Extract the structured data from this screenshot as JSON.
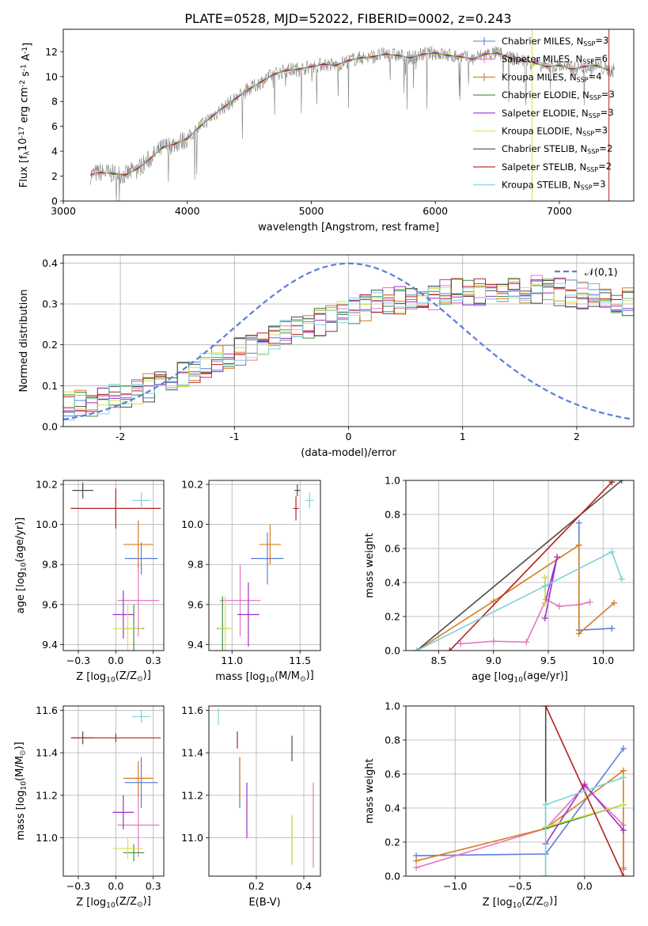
{
  "figure_title": "PLATE=0528, MJD=52022, FIBERID=0002, z=0.243",
  "colors": {
    "chabrier_miles": "#5b7fd6",
    "salpeter_miles": "#e377c2",
    "kroupa_miles": "#d97b1f",
    "chabrier_elodie": "#3f8f3f",
    "salpeter_elodie": "#9b30c8",
    "kroupa_elodie": "#d9e04a",
    "chabrier_stelib": "#4d4d4d",
    "salpeter_stelib": "#b22222",
    "kroupa_stelib": "#7dd3d8",
    "data": "#808080",
    "gauss": "#5b7fd6",
    "grid": "#b0b0b0"
  },
  "chart_data": [
    {
      "type": "line",
      "id": "spectrum",
      "xlabel": "wavelength [Angstrom, rest frame]",
      "ylabel": "Flux [f$_\\lambda$10$^{-17}$ erg cm$^{-2}$ s$^{-1}$ A$^{-1}$]",
      "xlim": [
        3000,
        7600
      ],
      "ylim": [
        0,
        13.8
      ],
      "xticks": [
        3000,
        4000,
        5000,
        6000,
        7000
      ],
      "yticks": [
        0,
        2,
        4,
        6,
        8,
        10,
        12
      ],
      "legend": [
        "Chabrier MILES, N$_{SSP}$=3",
        "Salpeter MILES, N$_{SSP}$=6",
        "Kroupa MILES, N$_{SSP}$=4",
        "Chabrier ELODIE, N$_{SSP}$=3",
        "Salpeter ELODIE, N$_{SSP}$=3",
        "Kroupa ELODIE, N$_{SSP}$=3",
        "Chabrier STELIB, N$_{SSP}$=2",
        "Salpeter STELIB, N$_{SSP}$=2",
        "Kroupa STELIB, N$_{SSP}$=3"
      ],
      "legend_placement": "right",
      "model_x": [
        3220,
        3300,
        3400,
        3500,
        3600,
        3700,
        3800,
        3900,
        4000,
        4100,
        4200,
        4300,
        4400,
        4500,
        4600,
        4700,
        4800,
        4900,
        5000,
        5100,
        5200,
        5300,
        5400,
        5500,
        5600,
        5700,
        5800,
        5900,
        6000,
        6100,
        6200,
        6300,
        6400,
        6500,
        6600,
        6700,
        6800,
        6900,
        7000,
        7100,
        7200,
        7300,
        7400
      ],
      "model_y": [
        2.1,
        2.3,
        2.2,
        2.1,
        2.6,
        3.4,
        4.3,
        4.6,
        5.0,
        6.0,
        6.8,
        7.6,
        8.3,
        9.0,
        9.6,
        10.2,
        10.5,
        10.6,
        10.8,
        11.0,
        10.9,
        11.3,
        11.5,
        11.6,
        11.8,
        11.7,
        11.5,
        11.8,
        11.9,
        11.7,
        11.6,
        11.4,
        11.8,
        11.9,
        11.5,
        11.3,
        11.1,
        10.8,
        10.9,
        10.6,
        10.8,
        10.9,
        10.5
      ]
    },
    {
      "type": "histogram",
      "id": "residuals",
      "xlabel": "(data-model)/error",
      "ylabel": "Normed distribution",
      "xlim": [
        -2.5,
        2.5
      ],
      "ylim": [
        0,
        0.42
      ],
      "xticks": [
        -2,
        -1,
        0,
        1,
        2
      ],
      "yticks": [
        0.0,
        0.1,
        0.2,
        0.3,
        0.4
      ],
      "legend": [
        "$\\mathcal{N}(0,1)$"
      ],
      "legend_placement": "upper right",
      "bin_width": 0.1,
      "hist_x_start": -2.5,
      "hist_envelope": [
        0.05,
        0.055,
        0.06,
        0.065,
        0.07,
        0.075,
        0.085,
        0.095,
        0.11,
        0.12,
        0.13,
        0.14,
        0.155,
        0.165,
        0.175,
        0.185,
        0.195,
        0.205,
        0.215,
        0.225,
        0.235,
        0.245,
        0.255,
        0.265,
        0.275,
        0.285,
        0.29,
        0.3,
        0.305,
        0.31,
        0.315,
        0.32,
        0.32,
        0.325,
        0.33,
        0.33,
        0.33,
        0.335,
        0.335,
        0.335,
        0.335,
        0.335,
        0.33,
        0.33,
        0.325,
        0.32,
        0.32,
        0.315,
        0.31,
        0.305,
        0.3,
        0.29,
        0.285,
        0.275,
        0.265,
        0.255,
        0.245,
        0.235,
        0.225,
        0.215,
        0.205,
        0.195,
        0.185,
        0.175,
        0.165,
        0.155,
        0.14,
        0.13,
        0.12,
        0.11,
        0.1,
        0.09,
        0.085,
        0.08,
        0.07,
        0.065,
        0.06,
        0.055,
        0.05,
        0.05
      ]
    },
    {
      "type": "errorbar",
      "id": "age-vs-Z",
      "xlabel": "Z [log$_{10}$($Z/Z_\\odot$)]",
      "ylabel": "age  [log$_{10}$($age/yr$)]",
      "xlim": [
        -0.35,
        0.32
      ],
      "ylim": [
        9.37,
        10.22
      ],
      "xticks": [
        -0.25,
        0.0,
        0.25
      ],
      "yticks": [
        9.4,
        9.6,
        9.8,
        10.0,
        10.2
      ],
      "points": [
        {
          "model": "chabrier_miles",
          "x": 0.17,
          "y": 9.83,
          "xerr": 0.11,
          "yerr": 0.08
        },
        {
          "model": "salpeter_miles",
          "x": 0.15,
          "y": 9.62,
          "xerr": 0.14,
          "yerr": 0.18
        },
        {
          "model": "kroupa_miles",
          "x": 0.15,
          "y": 9.9,
          "xerr": 0.1,
          "yerr": 0.12
        },
        {
          "model": "chabrier_elodie",
          "x": 0.12,
          "y": 9.48,
          "xerr": 0.07,
          "yerr": 0.12
        },
        {
          "model": "salpeter_elodie",
          "x": 0.05,
          "y": 9.55,
          "xerr": 0.07,
          "yerr": 0.12
        },
        {
          "model": "kroupa_elodie",
          "x": 0.08,
          "y": 9.48,
          "xerr": 0.1,
          "yerr": 0.12
        },
        {
          "model": "chabrier_stelib",
          "x": -0.22,
          "y": 10.17,
          "xerr": 0.07,
          "yerr": 0.04
        },
        {
          "model": "salpeter_stelib",
          "x": 0.0,
          "y": 10.08,
          "xerr": 0.3,
          "yerr": 0.1
        },
        {
          "model": "kroupa_stelib",
          "x": 0.17,
          "y": 10.12,
          "xerr": 0.06,
          "yerr": 0.04
        }
      ]
    },
    {
      "type": "errorbar",
      "id": "age-vs-mass",
      "xlabel": "mass [log$_{10}$($M/M_\\odot$)]",
      "ylabel": "",
      "xlim": [
        10.83,
        11.65
      ],
      "ylim": [
        9.37,
        10.22
      ],
      "xticks": [
        11.0,
        11.5
      ],
      "yticks": [
        9.4,
        9.6,
        9.8,
        10.0,
        10.2
      ],
      "points": [
        {
          "model": "chabrier_miles",
          "x": 11.26,
          "y": 9.83,
          "xerr": 0.12,
          "yerr": 0.13
        },
        {
          "model": "salpeter_miles",
          "x": 11.06,
          "y": 9.62,
          "xerr": 0.15,
          "yerr": 0.18
        },
        {
          "model": "kroupa_miles",
          "x": 11.28,
          "y": 9.9,
          "xerr": 0.08,
          "yerr": 0.1
        },
        {
          "model": "chabrier_elodie",
          "x": 10.93,
          "y": 9.48,
          "xerr": 0.04,
          "yerr": 0.16
        },
        {
          "model": "salpeter_elodie",
          "x": 11.12,
          "y": 9.55,
          "xerr": 0.08,
          "yerr": 0.16
        },
        {
          "model": "kroupa_elodie",
          "x": 10.95,
          "y": 9.48,
          "xerr": 0.05,
          "yerr": 0.16
        },
        {
          "model": "chabrier_stelib",
          "x": 11.48,
          "y": 10.17,
          "xerr": 0.02,
          "yerr": 0.03
        },
        {
          "model": "salpeter_stelib",
          "x": 11.47,
          "y": 10.08,
          "xerr": 0.02,
          "yerr": 0.06
        },
        {
          "model": "kroupa_stelib",
          "x": 11.57,
          "y": 10.12,
          "xerr": 0.03,
          "yerr": 0.04
        }
      ]
    },
    {
      "type": "line",
      "id": "massweight-vs-age",
      "xlabel": "age  [log$_{10}$($age/yr$)]",
      "ylabel": "mass weight",
      "xlim": [
        8.2,
        10.28
      ],
      "ylim": [
        0.0,
        1.0
      ],
      "xticks": [
        8.5,
        9.0,
        9.5,
        10.0
      ],
      "yticks": [
        0.0,
        0.2,
        0.4,
        0.6,
        0.8,
        1.0
      ],
      "series": [
        {
          "model": "chabrier_miles",
          "x": [
            9.78,
            9.78,
            10.08
          ],
          "y": [
            0.75,
            0.12,
            0.13
          ]
        },
        {
          "model": "salpeter_miles",
          "x": [
            8.7,
            9.0,
            9.3,
            9.48,
            9.6,
            9.78,
            9.88
          ],
          "y": [
            0.04,
            0.055,
            0.05,
            0.3,
            0.26,
            0.27,
            0.285
          ]
        },
        {
          "model": "kroupa_miles",
          "x": [
            8.3,
            9.0,
            9.78,
            9.78,
            10.1
          ],
          "y": [
            0.0,
            0.29,
            0.62,
            0.1,
            0.28
          ]
        },
        {
          "model": "chabrier_elodie",
          "x": [
            9.47,
            9.47
          ],
          "y": [
            0.43,
            0.28
          ]
        },
        {
          "model": "salpeter_elodie",
          "x": [
            9.47,
            9.58,
            9.47
          ],
          "y": [
            0.19,
            0.55,
            0.28
          ]
        },
        {
          "model": "kroupa_elodie",
          "x": [
            9.47,
            9.47
          ],
          "y": [
            0.43,
            0.28
          ]
        },
        {
          "model": "chabrier_stelib",
          "x": [
            8.3,
            10.17
          ],
          "y": [
            0.0,
            1.0
          ]
        },
        {
          "model": "salpeter_stelib",
          "x": [
            8.6,
            10.08
          ],
          "y": [
            0.0,
            0.99
          ]
        },
        {
          "model": "kroupa_stelib",
          "x": [
            8.3,
            9.47,
            10.08,
            10.17
          ],
          "y": [
            0.0,
            0.38,
            0.58,
            0.42
          ]
        }
      ]
    },
    {
      "type": "errorbar",
      "id": "mass-vs-Z",
      "xlabel": "Z [log$_{10}$($Z/Z_\\odot$)]",
      "ylabel": "mass [log$_{10}$($M/M_\\odot$)]",
      "xlim": [
        -0.35,
        0.32
      ],
      "ylim": [
        10.82,
        11.62
      ],
      "xticks": [
        -0.25,
        0.0,
        0.25
      ],
      "yticks": [
        11.0,
        11.2,
        11.4,
        11.6
      ],
      "points": [
        {
          "model": "chabrier_miles",
          "x": 0.17,
          "y": 11.26,
          "xerr": 0.11,
          "yerr": 0.12
        },
        {
          "model": "salpeter_miles",
          "x": 0.15,
          "y": 11.06,
          "xerr": 0.14,
          "yerr": 0.15
        },
        {
          "model": "kroupa_miles",
          "x": 0.15,
          "y": 11.28,
          "xerr": 0.1,
          "yerr": 0.08
        },
        {
          "model": "chabrier_elodie",
          "x": 0.12,
          "y": 10.93,
          "xerr": 0.07,
          "yerr": 0.04
        },
        {
          "model": "salpeter_elodie",
          "x": 0.05,
          "y": 11.12,
          "xerr": 0.07,
          "yerr": 0.08
        },
        {
          "model": "kroupa_elodie",
          "x": 0.08,
          "y": 10.95,
          "xerr": 0.1,
          "yerr": 0.05
        },
        {
          "model": "chabrier_stelib",
          "x": -0.22,
          "y": 11.47,
          "xerr": 0.07,
          "yerr": 0.03
        },
        {
          "model": "salpeter_stelib",
          "x": 0.0,
          "y": 11.47,
          "xerr": 0.3,
          "yerr": 0.02
        },
        {
          "model": "kroupa_stelib",
          "x": 0.17,
          "y": 11.57,
          "xerr": 0.06,
          "yerr": 0.03
        }
      ]
    },
    {
      "type": "errorbar",
      "id": "mass-vs-EBV",
      "xlabel": "E(B-V)",
      "ylabel": "",
      "xlim": [
        0.0,
        0.47
      ],
      "ylim": [
        10.82,
        11.62
      ],
      "xticks": [
        0.2,
        0.4
      ],
      "yticks": [
        11.0,
        11.2,
        11.4,
        11.6
      ],
      "points": [
        {
          "model": "chabrier_miles",
          "x": 0.13,
          "y": 11.26,
          "xerr": 0,
          "yerr": 0.12
        },
        {
          "model": "salpeter_miles",
          "x": 0.44,
          "y": 11.06,
          "xerr": 0,
          "yerr": 0.2
        },
        {
          "model": "kroupa_miles",
          "x": 0.13,
          "y": 11.28,
          "xerr": 0,
          "yerr": 0.1
        },
        {
          "model": "chabrier_elodie",
          "x": 0.35,
          "y": 10.99,
          "xerr": 0,
          "yerr": 0.11
        },
        {
          "model": "salpeter_elodie",
          "x": 0.16,
          "y": 11.13,
          "xerr": 0,
          "yerr": 0.13
        },
        {
          "model": "kroupa_elodie",
          "x": 0.35,
          "y": 10.99,
          "xerr": 0,
          "yerr": 0.12
        },
        {
          "model": "chabrier_stelib",
          "x": 0.35,
          "y": 11.42,
          "xerr": 0,
          "yerr": 0.06
        },
        {
          "model": "salpeter_stelib",
          "x": 0.12,
          "y": 11.46,
          "xerr": 0,
          "yerr": 0.04
        },
        {
          "model": "kroupa_stelib",
          "x": 0.04,
          "y": 11.57,
          "xerr": 0,
          "yerr": 0.04
        }
      ]
    },
    {
      "type": "line",
      "id": "massweight-vs-Z",
      "xlabel": "Z [log$_{10}$($Z/Z_\\odot$)]",
      "ylabel": "mass weight",
      "xlim": [
        -1.38,
        0.38
      ],
      "ylim": [
        0.0,
        1.0
      ],
      "xticks": [
        -1.0,
        -0.5,
        0.0
      ],
      "yticks": [
        0.0,
        0.2,
        0.4,
        0.6,
        0.8,
        1.0
      ],
      "series": [
        {
          "model": "chabrier_miles",
          "x": [
            -1.3,
            -0.3,
            0.3
          ],
          "y": [
            0.12,
            0.13,
            0.75
          ]
        },
        {
          "model": "salpeter_miles",
          "x": [
            -1.3,
            -0.3,
            0.0,
            0.3,
            0.3
          ],
          "y": [
            0.05,
            0.28,
            0.53,
            0.3,
            0.05
          ]
        },
        {
          "model": "kroupa_miles",
          "x": [
            -1.3,
            -0.3,
            0.3,
            0.3
          ],
          "y": [
            0.09,
            0.28,
            0.62,
            0.04
          ]
        },
        {
          "model": "chabrier_elodie",
          "x": [
            -0.3,
            0.3
          ],
          "y": [
            0.28,
            0.42
          ]
        },
        {
          "model": "salpeter_elodie",
          "x": [
            -0.3,
            0.0,
            0.3
          ],
          "y": [
            0.19,
            0.54,
            0.27
          ]
        },
        {
          "model": "kroupa_elodie",
          "x": [
            -0.3,
            0.3
          ],
          "y": [
            0.29,
            0.42
          ]
        },
        {
          "model": "chabrier_stelib",
          "x": [
            -0.3,
            -0.3
          ],
          "y": [
            0.0,
            1.0
          ]
        },
        {
          "model": "salpeter_stelib",
          "x": [
            -0.3,
            0.3
          ],
          "y": [
            1.0,
            0.0
          ]
        },
        {
          "model": "kroupa_stelib",
          "x": [
            -0.3,
            -0.3,
            0.3
          ],
          "y": [
            0.0,
            0.42,
            0.58
          ]
        }
      ]
    }
  ]
}
